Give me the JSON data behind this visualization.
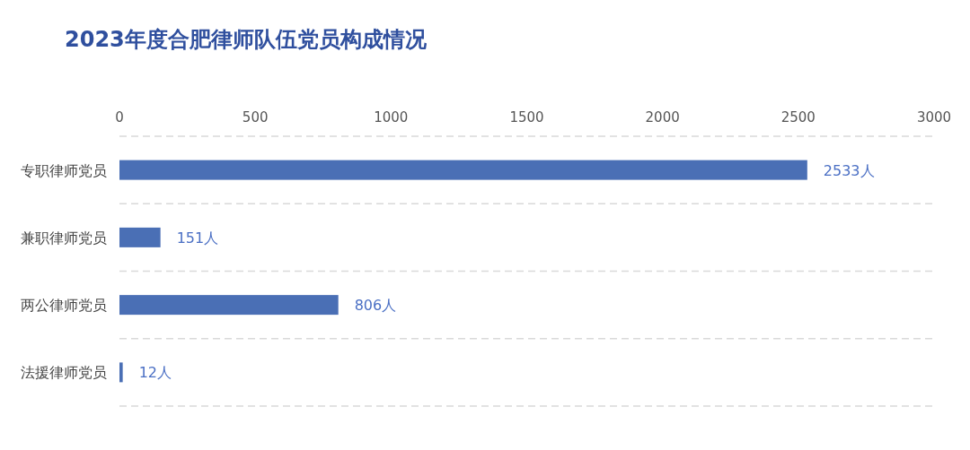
{
  "chart_data": {
    "type": "bar",
    "orientation": "horizontal",
    "title": "2023年度合肥律师队伍党员构成情况",
    "categories": [
      "专职律师党员",
      "兼职律师党员",
      "两公律师党员",
      "法援律师党员"
    ],
    "values": [
      2533,
      151,
      806,
      12
    ],
    "value_labels": [
      "2533人",
      "151人",
      "806人",
      "12人"
    ],
    "color": "#4a6fb5",
    "xlim": [
      0,
      3000
    ],
    "xticks": [
      0,
      500,
      1000,
      1500,
      2000,
      2500,
      3000
    ],
    "grid": "y"
  }
}
